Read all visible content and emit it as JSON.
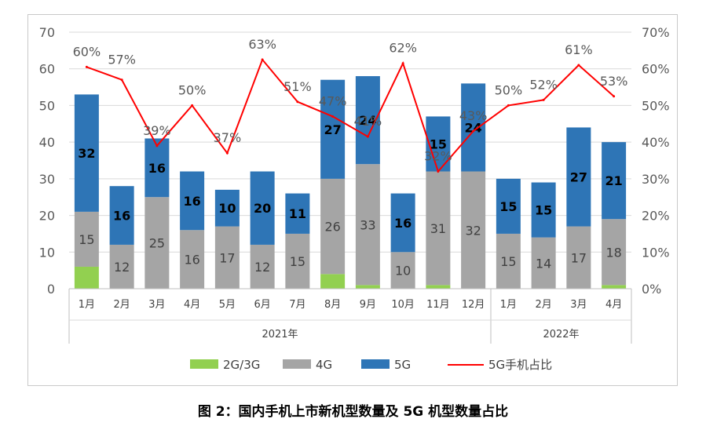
{
  "caption": "图 2：国内手机上市新机型数量及 5G 机型数量占比",
  "chart_data": {
    "type": "bar",
    "stacked": true,
    "categories": [
      "1月",
      "2月",
      "3月",
      "4月",
      "5月",
      "6月",
      "7月",
      "8月",
      "9月",
      "10月",
      "11月",
      "12月",
      "1月",
      "2月",
      "3月",
      "4月"
    ],
    "groups": [
      {
        "label": "2021年",
        "from": 0,
        "to": 11
      },
      {
        "label": "2022年",
        "from": 12,
        "to": 15
      }
    ],
    "series": [
      {
        "name": "2G/3G",
        "kind": "bar",
        "color": "#92d050",
        "values": [
          6,
          0,
          0,
          0,
          0,
          0,
          0,
          4,
          1,
          0,
          1,
          0,
          0,
          0,
          0,
          1
        ]
      },
      {
        "name": "4G",
        "kind": "bar",
        "color": "#a5a5a5",
        "values": [
          15,
          12,
          25,
          16,
          17,
          12,
          15,
          26,
          33,
          10,
          31,
          32,
          15,
          14,
          17,
          18
        ]
      },
      {
        "name": "5G",
        "kind": "bar",
        "color": "#2e75b6",
        "values": [
          32,
          16,
          16,
          16,
          10,
          20,
          11,
          27,
          24,
          16,
          15,
          24,
          15,
          15,
          27,
          21
        ]
      },
      {
        "name": "5G手机占比",
        "kind": "line",
        "color": "#ff0000",
        "axis": "right",
        "values": [
          60.5,
          57,
          39,
          50,
          37,
          62.5,
          51,
          47,
          41.5,
          61.5,
          32,
          43,
          50,
          51.5,
          61,
          52.5
        ],
        "labels": [
          "60%",
          "57%",
          "39%",
          "50%",
          "37%",
          "63%",
          "51%",
          "47%",
          "41%",
          "62%",
          "32%",
          "43%",
          "50%",
          "52%",
          "61%",
          "53%"
        ]
      }
    ],
    "y_left": {
      "min": 0,
      "max": 70,
      "ticks": [
        "0",
        "10",
        "20",
        "30",
        "40",
        "50",
        "60",
        "70"
      ]
    },
    "y_right": {
      "min": 0,
      "max": 70,
      "ticks": [
        "0%",
        "10%",
        "20%",
        "30%",
        "40%",
        "50%",
        "60%",
        "70%"
      ]
    },
    "grid": true,
    "legend_position": "bottom"
  }
}
